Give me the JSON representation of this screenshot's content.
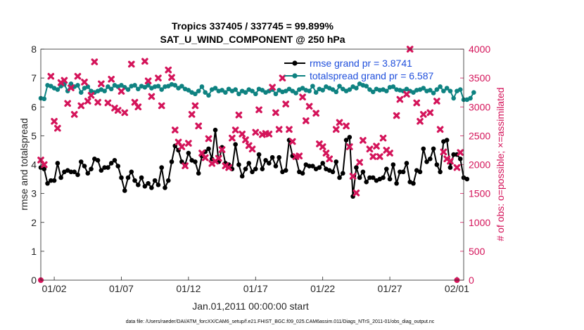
{
  "chart_data": {
    "type": "line",
    "title_line1": "Tropics 337405 / 337745 = 99.899%",
    "title_line2": "SAT_U_WIND_COMPONENT @ 250 hPa",
    "xlabel": "Jan.01,2011 00:00:00 start",
    "ylabel_left": "rmse and totalspread",
    "ylabel_right": "# of obs: o=possible; ×=assimilated",
    "footnote": "data file: /Users/raeder/DAI/ATM_forcXX/CAM6_setup/f.e21.FHIST_BGC.f09_025.CAM6assim.011/Diags_NTrS_2011-01/obs_diag_output.nc",
    "xlim": [
      0,
      31.5
    ],
    "ylim_left": [
      0,
      8
    ],
    "ylim_right": [
      0,
      4000
    ],
    "x_ticks": [
      {
        "x": 1,
        "label": "01/02"
      },
      {
        "x": 6,
        "label": "01/07"
      },
      {
        "x": 11,
        "label": "01/12"
      },
      {
        "x": 16,
        "label": "01/17"
      },
      {
        "x": 21,
        "label": "01/22"
      },
      {
        "x": 26,
        "label": "01/27"
      },
      {
        "x": 31,
        "label": "02/01"
      }
    ],
    "y_ticks_left": [
      "0",
      "1",
      "2",
      "3",
      "4",
      "5",
      "6",
      "7",
      "8"
    ],
    "y_ticks_right": [
      "0",
      "500",
      "1000",
      "1500",
      "2000",
      "2500",
      "3000",
      "3500",
      "4000"
    ],
    "legend_position": "top-right",
    "colors": {
      "rmse": "#000000",
      "spread": "#0e8281",
      "obs": "#d4145a",
      "legend_text": "#1f4fdc",
      "right_axis": "#d4145a"
    },
    "series": [
      {
        "name": "rmse grand pr = 3.8741",
        "axis": "left",
        "step": 0.25,
        "start": 0,
        "values": [
          3.9,
          3.85,
          3.35,
          3.45,
          3.45,
          4.05,
          3.55,
          3.75,
          3.8,
          3.75,
          3.75,
          3.65,
          4.1,
          3.95,
          3.7,
          3.85,
          4.2,
          4.15,
          3.8,
          3.9,
          3.9,
          4.05,
          4.15,
          3.95,
          3.55,
          3.1,
          3.55,
          3.75,
          3.45,
          3.3,
          3.55,
          3.25,
          3.35,
          3.2,
          3.45,
          3.3,
          3.9,
          3.2,
          3.45,
          4.1,
          4.65,
          4.5,
          4.1,
          4.0,
          4.4,
          4.15,
          4.1,
          3.7,
          4.3,
          4.45,
          4.55,
          4.2,
          5.2,
          4.1,
          4.6,
          4.05,
          4.0,
          3.85,
          4.7,
          4.0,
          3.6,
          3.85,
          4.05,
          3.75,
          3.85,
          4.35,
          3.85,
          4.15,
          4.05,
          4.25,
          3.95,
          4.25,
          3.75,
          3.8,
          4.85,
          4.3,
          4.25,
          3.75,
          3.7,
          4.0,
          3.95,
          3.95,
          3.85,
          3.9,
          4.05,
          3.85,
          3.8,
          3.75,
          4.1,
          3.55,
          3.7,
          4.85,
          4.95,
          2.9,
          3.9,
          3.55,
          3.75,
          3.4,
          3.55,
          3.55,
          3.45,
          3.5,
          3.55,
          3.85,
          3.5,
          4.0,
          3.35,
          3.75,
          3.75,
          4.05,
          3.4,
          3.35,
          3.8,
          3.75,
          4.55,
          4.1,
          4.2,
          4.55,
          4.0,
          3.75,
          4.8,
          4.85,
          3.9,
          4.35,
          4.35,
          4.2,
          3.55,
          3.5
        ]
      },
      {
        "name": "totalspread grand pr = 6.587",
        "axis": "left",
        "step": 0.25,
        "start": 0,
        "values": [
          6.3,
          6.28,
          6.75,
          6.72,
          6.65,
          6.6,
          6.72,
          6.78,
          6.55,
          6.8,
          6.7,
          6.75,
          6.5,
          6.65,
          6.7,
          6.55,
          6.5,
          6.55,
          6.6,
          6.55,
          6.7,
          6.62,
          6.75,
          6.7,
          6.75,
          6.68,
          6.6,
          6.72,
          6.75,
          6.62,
          6.72,
          6.68,
          6.75,
          6.65,
          6.7,
          6.72,
          6.6,
          6.7,
          6.72,
          6.78,
          6.75,
          6.65,
          6.72,
          6.62,
          6.58,
          6.5,
          6.45,
          6.55,
          6.7,
          6.5,
          6.4,
          6.6,
          6.65,
          6.55,
          6.58,
          6.5,
          6.62,
          6.55,
          6.6,
          6.45,
          6.55,
          6.5,
          6.6,
          6.55,
          6.45,
          6.62,
          6.58,
          6.5,
          6.55,
          6.6,
          6.45,
          6.58,
          6.52,
          6.55,
          6.62,
          6.55,
          6.48,
          6.6,
          6.65,
          6.58,
          6.55,
          6.72,
          6.5,
          6.62,
          6.58,
          6.7,
          6.65,
          6.6,
          6.52,
          6.72,
          6.62,
          6.55,
          6.6,
          6.7,
          6.65,
          6.8,
          6.75,
          6.72,
          6.6,
          6.52,
          6.62,
          6.58,
          6.6,
          6.55,
          6.68,
          6.7,
          6.6,
          6.58,
          6.55,
          6.62,
          6.55,
          6.5,
          6.58,
          6.6,
          6.65,
          6.55,
          6.58,
          6.48,
          6.6,
          6.7,
          6.55,
          6.65,
          6.55,
          6.3,
          6.55,
          6.6,
          6.25,
          6.25,
          6.3,
          6.5
        ]
      },
      {
        "name": "# of obs possible",
        "axis": "right",
        "marker": "o",
        "points": [
          [
            0,
            0
          ],
          [
            31,
            0
          ]
        ]
      },
      {
        "name": "# of obs assimilated",
        "axis": "right",
        "marker": "x",
        "points": [
          [
            0,
            2080
          ],
          [
            0.25,
            2000
          ],
          [
            0.75,
            3530
          ],
          [
            1.0,
            2750
          ],
          [
            1.25,
            2630
          ],
          [
            1.5,
            3420
          ],
          [
            1.75,
            3460
          ],
          [
            2.0,
            3060
          ],
          [
            2.25,
            3330
          ],
          [
            2.5,
            2870
          ],
          [
            2.75,
            3530
          ],
          [
            3.0,
            3020
          ],
          [
            3.25,
            3430
          ],
          [
            3.5,
            3100
          ],
          [
            3.75,
            3200
          ],
          [
            4.0,
            3780
          ],
          [
            4.25,
            3080
          ],
          [
            4.5,
            3400
          ],
          [
            5.0,
            3070
          ],
          [
            5.25,
            3480
          ],
          [
            5.5,
            2980
          ],
          [
            5.75,
            2940
          ],
          [
            6.0,
            3270
          ],
          [
            6.25,
            2900
          ],
          [
            6.75,
            3740
          ],
          [
            7.0,
            3080
          ],
          [
            7.25,
            3000
          ],
          [
            7.75,
            3790
          ],
          [
            8.0,
            3450
          ],
          [
            8.25,
            3180
          ],
          [
            8.75,
            3500
          ],
          [
            9.0,
            3020
          ],
          [
            9.5,
            3640
          ],
          [
            9.75,
            3510
          ],
          [
            10.0,
            2600
          ],
          [
            10.25,
            2390
          ],
          [
            10.5,
            2310
          ],
          [
            10.75,
            1980
          ],
          [
            11.0,
            2370
          ],
          [
            11.25,
            2870
          ],
          [
            11.5,
            3020
          ],
          [
            11.75,
            2670
          ],
          [
            12.0,
            2200
          ],
          [
            12.25,
            2120
          ],
          [
            12.5,
            2450
          ],
          [
            12.75,
            2020
          ],
          [
            13.0,
            2060
          ],
          [
            13.25,
            2110
          ],
          [
            13.5,
            2260
          ],
          [
            13.75,
            1980
          ],
          [
            14.0,
            1950
          ],
          [
            14.25,
            2460
          ],
          [
            14.5,
            2600
          ],
          [
            14.75,
            2860
          ],
          [
            15.0,
            2530
          ],
          [
            15.25,
            2430
          ],
          [
            15.5,
            2330
          ],
          [
            15.75,
            2270
          ],
          [
            16.0,
            2560
          ],
          [
            16.25,
            2950
          ],
          [
            16.5,
            2520
          ],
          [
            16.75,
            2540
          ],
          [
            17.0,
            2530
          ],
          [
            17.25,
            3340
          ],
          [
            17.5,
            2900
          ],
          [
            17.75,
            2610
          ],
          [
            18.0,
            3500
          ],
          [
            18.25,
            3050
          ],
          [
            18.5,
            2610
          ],
          [
            18.75,
            2400
          ],
          [
            19.0,
            2140
          ],
          [
            19.25,
            2150
          ],
          [
            19.5,
            3170
          ],
          [
            19.75,
            2760
          ],
          [
            20.0,
            3010
          ],
          [
            20.5,
            2890
          ],
          [
            20.75,
            2360
          ],
          [
            21.0,
            2310
          ],
          [
            21.25,
            2200
          ],
          [
            21.5,
            2100
          ],
          [
            22.0,
            2610
          ],
          [
            22.25,
            2730
          ],
          [
            22.75,
            2670
          ],
          [
            23.0,
            2310
          ],
          [
            23.25,
            1800
          ],
          [
            23.5,
            1510
          ],
          [
            23.75,
            2040
          ],
          [
            24.0,
            2420
          ],
          [
            24.5,
            2270
          ],
          [
            24.75,
            2140
          ],
          [
            25.0,
            2320
          ],
          [
            25.25,
            2140
          ],
          [
            25.5,
            2460
          ],
          [
            25.75,
            2250
          ],
          [
            26.0,
            2200
          ],
          [
            26.5,
            2850
          ],
          [
            26.75,
            3130
          ],
          [
            27.25,
            3220
          ],
          [
            27.5,
            4000
          ],
          [
            28.0,
            3070
          ],
          [
            28.25,
            2750
          ],
          [
            28.5,
            2870
          ],
          [
            29.0,
            2900
          ],
          [
            29.5,
            3100
          ],
          [
            29.75,
            2610
          ],
          [
            30.0,
            2220
          ],
          [
            30.25,
            2100
          ],
          [
            30.5,
            2060
          ],
          [
            31.0,
            1950
          ],
          [
            31.25,
            2210
          ]
        ]
      }
    ]
  }
}
